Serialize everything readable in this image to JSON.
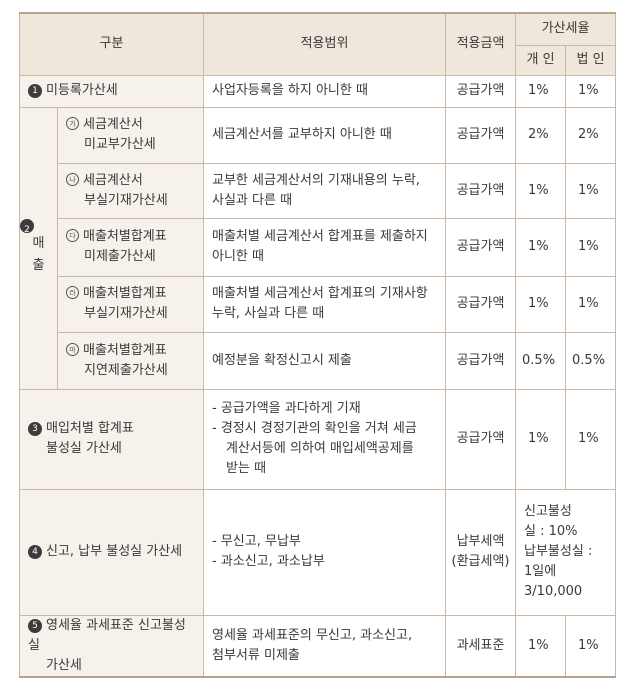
{
  "header": {
    "division": "구분",
    "scope": "적용범위",
    "amount": "적용금액",
    "rate": "가산세율",
    "individual": "개 인",
    "corporate": "법 인"
  },
  "rows": [
    {
      "num": "1",
      "category_lines": [
        "미등록가산세"
      ],
      "scope_lines": [
        "사업자등록을 하지 아니한 때"
      ],
      "amount_lines": [
        "공급가액"
      ],
      "individual": "1%",
      "corporate": "1%"
    },
    {
      "sub": "가",
      "category_lines": [
        "세금계산서",
        "미교부가산세"
      ],
      "scope_lines": [
        "세금계산서를 교부하지 아니한 때"
      ],
      "amount_lines": [
        "공급가액"
      ],
      "individual": "2%",
      "corporate": "2%"
    },
    {
      "sub": "나",
      "category_lines": [
        "세금계산서",
        "부실기재가산세"
      ],
      "scope_lines": [
        "교부한 세금계산서의 기재내용의 누락,",
        "사실과 다른 때"
      ],
      "amount_lines": [
        "공급가액"
      ],
      "individual": "1%",
      "corporate": "1%"
    },
    {
      "sub": "다",
      "category_lines": [
        "매출처별합계표",
        "미제출가산세"
      ],
      "scope_lines": [
        "매출처별 세금계산서 합계표를 제출하지",
        "아니한 때"
      ],
      "amount_lines": [
        "공급가액"
      ],
      "individual": "1%",
      "corporate": "1%"
    },
    {
      "sub": "라",
      "category_lines": [
        "매출처별합계표",
        "부실기재가산세"
      ],
      "scope_lines": [
        "매출처별 세금계산서 합계표의 기재사항",
        "누락, 사실과 다른 때"
      ],
      "amount_lines": [
        "공급가액"
      ],
      "individual": "1%",
      "corporate": "1%"
    },
    {
      "sub": "마",
      "category_lines": [
        "매출처별합계표",
        "지연제출가산세"
      ],
      "scope_lines": [
        "예정분을 확정신고시 제출"
      ],
      "amount_lines": [
        "공급가액"
      ],
      "individual": "0.5%",
      "corporate": "0.5%"
    },
    {
      "num": "3",
      "category_lines": [
        "매입처별 합계표",
        "불성실 가산세"
      ],
      "scope_items": [
        [
          "공급가액을 과다하게 기재"
        ],
        [
          "경정시 경정기관의 확인을 거쳐 세금",
          "계산서등에 의하여 매입세액공제를",
          "받는 때"
        ]
      ],
      "amount_lines": [
        "공급가액"
      ],
      "individual": "1%",
      "corporate": "1%"
    },
    {
      "num": "4",
      "category_lines": [
        "신고, 납부 불성실 가산세"
      ],
      "scope_items": [
        [
          "무신고, 무납부"
        ],
        [
          "과소신고, 과소납부"
        ]
      ],
      "amount_lines": [
        "납부세액",
        "(환급세액)"
      ],
      "merged_rate_lines": [
        "신고불성",
        "실 : 10%",
        "납부불성실 :",
        "1일에",
        "3/10,000"
      ]
    },
    {
      "num": "5",
      "category_lines": [
        "영세율 과세표준 신고불성실",
        "가산세"
      ],
      "scope_lines": [
        "영세율 과세표준의 무신고, 과소신고,",
        "첨부서류 미제출"
      ],
      "amount_lines": [
        "과세표준"
      ],
      "individual": "1%",
      "corporate": "1%"
    }
  ],
  "side_group": {
    "num": "2",
    "chars": [
      "매",
      "출"
    ]
  }
}
